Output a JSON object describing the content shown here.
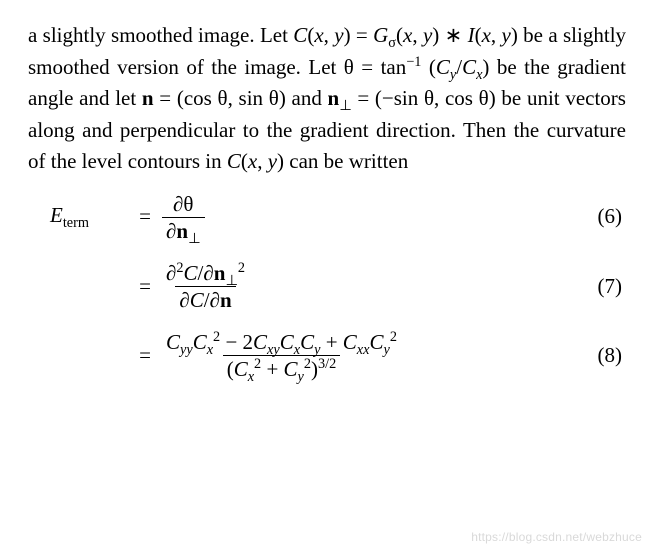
{
  "paragraph": {
    "text_html": "a slightly smoothed image. Let <span class='it'>C</span>(<span class='it'>x</span>, <span class='it'>y</span>) = <span class='it'>G</span><sub>σ</sub>(<span class='it'>x</span>, <span class='it'>y</span>) ∗ <span class='it'>I</span>(<span class='it'>x</span>, <span class='it'>y</span>) be a slightly smoothed version of the image. Let θ = tan<sup>−1</sup> (<span class='it'>C<sub>y</sub></span>/<span class='it'>C<sub>x</sub></span>) be the gradient angle and let <b>n</b> = (cos θ, sin θ) and <b>n</b><sub>⊥</sub> = (−sin θ, cos θ) be unit vectors along and perpendicular to the gradient direction. Then the curvature of the level contours in <span class='it'>C</span>(<span class='it'>x</span>, <span class='it'>y</span>) can be written"
  },
  "equations": [
    {
      "lhs_html": "<span class='it'>E</span><span class='sub'>term</span>",
      "num_html": "∂θ",
      "den_html": "∂<b>n</b><sub>⊥</sub>",
      "number": "(6)"
    },
    {
      "lhs_html": "",
      "num_html": "∂<sup>2</sup><span class='it'>C</span>/∂<b>n</b><sub>⊥</sub><sup>2</sup>",
      "den_html": "∂<span class='it'>C</span>/∂<b>n</b>",
      "number": "(7)"
    },
    {
      "lhs_html": "",
      "num_html": "<span class='it'>C<sub>yy</sub>C<sub>x</sub></span><sup>2</sup> − 2<span class='it'>C<sub>xy</sub>C<sub>x</sub>C<sub>y</sub></span> + <span class='it'>C<sub>xx</sub>C<sub>y</sub></span><sup>2</sup>",
      "den_html": "(<span class='it'>C<sub>x</sub></span><sup>2</sup> + <span class='it'>C<sub>y</sub></span><sup>2</sup>)<sup>3/2</sup>",
      "number": "(8)"
    }
  ],
  "watermark": "https://blog.csdn.net/webzhuce",
  "style": {
    "font_family": "Times New Roman",
    "font_size_pt": 16,
    "text_color": "#000000",
    "background_color": "#ffffff",
    "watermark_color": "#d9d9d9"
  }
}
